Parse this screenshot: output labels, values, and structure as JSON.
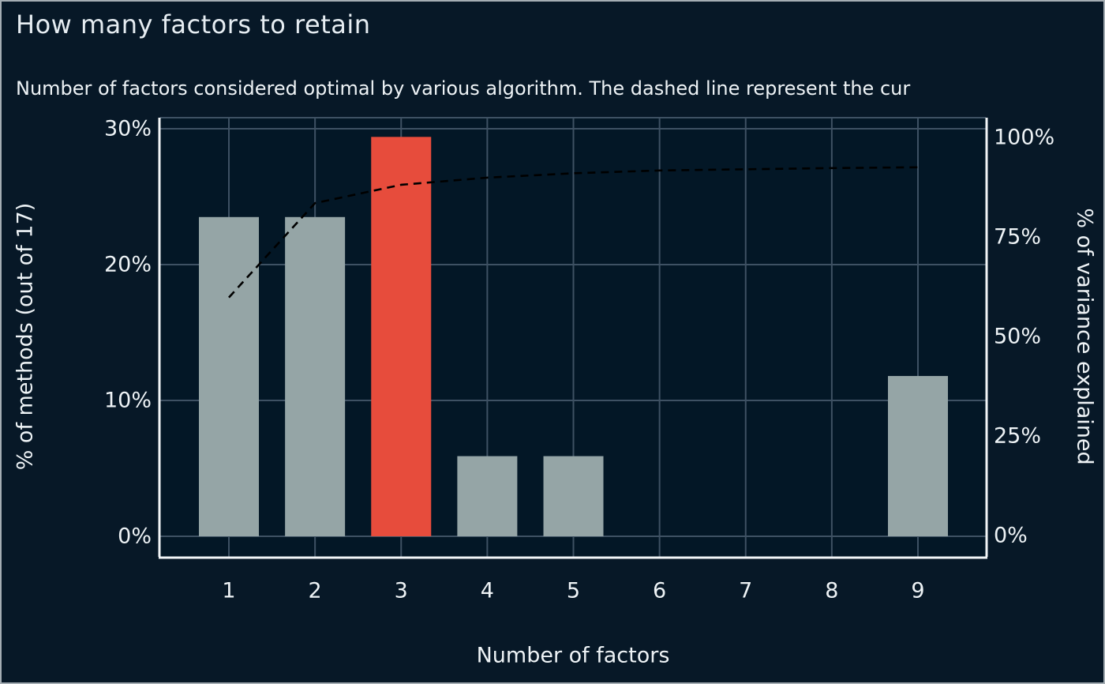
{
  "title": "How many factors to retain",
  "subtitle": "Number of factors considered optimal by various algorithm. The dashed line represent the cur",
  "chart_data": {
    "type": "bar",
    "title": "How many factors to retain",
    "subtitle": "Number of factors considered optimal by various algorithm. The dashed line represent the cur",
    "xlabel": "Number of factors",
    "ylabel_left": "% of methods (out of 17)",
    "ylabel_right": "% of variance explained",
    "categories": [
      "1",
      "2",
      "3",
      "4",
      "5",
      "6",
      "7",
      "8",
      "9"
    ],
    "series": [
      {
        "name": "% of methods (out of 17)",
        "type": "bar",
        "values": [
          23.5,
          23.5,
          29.4,
          5.9,
          5.9,
          0,
          0,
          0,
          11.8
        ],
        "highlight_index": 2
      },
      {
        "name": "cumulative % of variance explained",
        "type": "line",
        "style": "dashed",
        "axis": "right",
        "values": [
          59.8,
          83.5,
          88.1,
          89.9,
          91.0,
          91.7,
          92.0,
          92.3,
          92.5
        ]
      }
    ],
    "axes": {
      "left": {
        "ticks": [
          "0%",
          "10%",
          "20%",
          "30%"
        ],
        "tick_values": [
          0,
          10,
          20,
          30
        ],
        "range": [
          0,
          30.8
        ]
      },
      "right": {
        "ticks": [
          "0%",
          "25%",
          "50%",
          "75%",
          "100%"
        ],
        "tick_values": [
          0,
          25,
          50,
          75,
          100
        ],
        "range": [
          0,
          105
        ]
      },
      "x": {
        "ticks": [
          "1",
          "2",
          "3",
          "4",
          "5",
          "6",
          "7",
          "8",
          "9"
        ]
      }
    },
    "grid": "on",
    "legend": "none",
    "colors": {
      "bar": "#95a5a6",
      "bar_highlight": "#e74c3c",
      "line": "#000000",
      "background": "#071827",
      "panel_background": "#031726",
      "grid": "#3e5163",
      "axis_line": "#f2f5f7",
      "text": "#eef3f6"
    }
  }
}
